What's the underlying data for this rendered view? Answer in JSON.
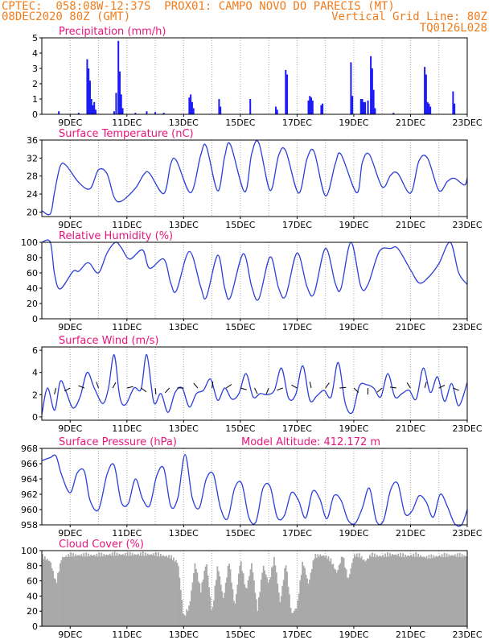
{
  "header": {
    "line1": "CPTEC:  058:08W-12:37S  PROX01: CAMPO NOVO DO PARECIS (MT)",
    "line2": "08DEC2020 80Z (GMT)",
    "line3": "Vertical Grid Line: 80Z",
    "line4": "TQ0126L028"
  },
  "colors": {
    "header": "#f07c1c",
    "title": "#e8157e",
    "precip": "#1b1bf5",
    "line": "#2a3fd9",
    "cloud": "#a9a9a9"
  },
  "chart_data": [
    {
      "id": "precip",
      "type": "bar",
      "title": "Precipitation  (mm/h)",
      "x_ticks": [
        "9DEC",
        "11DEC",
        "13DEC",
        "15DEC",
        "17DEC",
        "19DEC",
        "21DEC",
        "23DEC"
      ],
      "xlim": [
        8.0,
        23.0
      ],
      "ylim": [
        0,
        5
      ],
      "y_ticks": [
        0,
        1,
        2,
        3,
        4,
        5
      ],
      "bars": [
        {
          "x": 8.6,
          "v": 0.2
        },
        {
          "x": 9.3,
          "v": 0.1
        },
        {
          "x": 9.6,
          "v": 3.6
        },
        {
          "x": 9.65,
          "v": 3.0
        },
        {
          "x": 9.7,
          "v": 2.2
        },
        {
          "x": 9.75,
          "v": 1.0
        },
        {
          "x": 9.8,
          "v": 0.6
        },
        {
          "x": 9.85,
          "v": 0.8
        },
        {
          "x": 9.9,
          "v": 0.3
        },
        {
          "x": 10.55,
          "v": 0.2
        },
        {
          "x": 10.62,
          "v": 1.4
        },
        {
          "x": 10.7,
          "v": 4.8
        },
        {
          "x": 10.75,
          "v": 2.8
        },
        {
          "x": 10.8,
          "v": 1.3
        },
        {
          "x": 10.85,
          "v": 0.4
        },
        {
          "x": 11.3,
          "v": 0.1
        },
        {
          "x": 11.7,
          "v": 0.2
        },
        {
          "x": 12.0,
          "v": 0.15
        },
        {
          "x": 12.3,
          "v": 0.1
        },
        {
          "x": 13.2,
          "v": 1.1
        },
        {
          "x": 13.25,
          "v": 1.3
        },
        {
          "x": 13.3,
          "v": 0.8
        },
        {
          "x": 13.35,
          "v": 0.4
        },
        {
          "x": 14.25,
          "v": 1.0
        },
        {
          "x": 14.3,
          "v": 0.5
        },
        {
          "x": 15.35,
          "v": 1.0
        },
        {
          "x": 16.25,
          "v": 0.5
        },
        {
          "x": 16.3,
          "v": 0.3
        },
        {
          "x": 16.6,
          "v": 2.9
        },
        {
          "x": 16.65,
          "v": 2.6
        },
        {
          "x": 17.4,
          "v": 0.9
        },
        {
          "x": 17.45,
          "v": 1.2
        },
        {
          "x": 17.5,
          "v": 1.1
        },
        {
          "x": 17.55,
          "v": 0.9
        },
        {
          "x": 17.85,
          "v": 0.6
        },
        {
          "x": 17.9,
          "v": 0.7
        },
        {
          "x": 18.9,
          "v": 3.4
        },
        {
          "x": 18.95,
          "v": 1.2
        },
        {
          "x": 19.25,
          "v": 1.0
        },
        {
          "x": 19.3,
          "v": 1.0
        },
        {
          "x": 19.35,
          "v": 0.8
        },
        {
          "x": 19.4,
          "v": 0.8
        },
        {
          "x": 19.5,
          "v": 0.9
        },
        {
          "x": 19.6,
          "v": 3.8
        },
        {
          "x": 19.65,
          "v": 3.0
        },
        {
          "x": 19.7,
          "v": 1.6
        },
        {
          "x": 19.75,
          "v": 0.4
        },
        {
          "x": 20.4,
          "v": 0.1
        },
        {
          "x": 21.5,
          "v": 3.1
        },
        {
          "x": 21.55,
          "v": 2.6
        },
        {
          "x": 21.6,
          "v": 0.8
        },
        {
          "x": 21.65,
          "v": 0.7
        },
        {
          "x": 21.7,
          "v": 0.5
        },
        {
          "x": 22.5,
          "v": 1.5
        },
        {
          "x": 22.55,
          "v": 0.7
        }
      ]
    },
    {
      "id": "temp",
      "type": "line",
      "title": "Surface Temperature (nC)",
      "x_ticks": [
        "9DEC",
        "11DEC",
        "13DEC",
        "15DEC",
        "17DEC",
        "19DEC",
        "21DEC",
        "23DEC"
      ],
      "xlim": [
        8.0,
        23.0
      ],
      "ylim": [
        19,
        36
      ],
      "y_ticks": [
        20,
        24,
        28,
        32,
        36
      ],
      "x": [
        8.0,
        8.3,
        8.45,
        8.65,
        8.85,
        9.3,
        9.7,
        10.0,
        10.3,
        10.55,
        10.8,
        11.3,
        11.6,
        11.8,
        12.3,
        12.55,
        12.75,
        13.25,
        13.6,
        13.8,
        14.2,
        14.45,
        14.65,
        15.15,
        15.4,
        15.65,
        16.05,
        16.35,
        16.6,
        17.05,
        17.35,
        17.6,
        18.0,
        18.35,
        18.55,
        19.1,
        19.3,
        19.55,
        20.0,
        20.3,
        20.55,
        21.0,
        21.3,
        21.6,
        22.0,
        22.3,
        22.55,
        22.9,
        23.0
      ],
      "y": [
        20.3,
        19.6,
        24.5,
        30.2,
        30.4,
        26.6,
        25.2,
        29.4,
        28.5,
        23.3,
        22.4,
        25.3,
        28.4,
        28.6,
        24.1,
        30.8,
        31.4,
        24.3,
        32.6,
        34.6,
        24.7,
        32.4,
        35.0,
        24.5,
        33.0,
        35.4,
        24.8,
        32.6,
        33.6,
        24.2,
        31.8,
        33.4,
        23.6,
        30.8,
        32.8,
        24.3,
        31.0,
        32.8,
        25.6,
        28.2,
        28.6,
        24.2,
        31.4,
        32.0,
        24.8,
        26.8,
        27.5,
        26.0,
        27.6
      ]
    },
    {
      "id": "rh",
      "type": "line",
      "title": "Relative Humidity (%)",
      "x_ticks": [
        "9DEC",
        "11DEC",
        "13DEC",
        "15DEC",
        "17DEC",
        "19DEC",
        "21DEC",
        "23DEC"
      ],
      "xlim": [
        8.0,
        23.0
      ],
      "ylim": [
        0,
        100
      ],
      "y_ticks": [
        0,
        20,
        40,
        60,
        80,
        100
      ],
      "x": [
        8.0,
        8.3,
        8.45,
        8.65,
        9.1,
        9.3,
        9.55,
        9.7,
        10.0,
        10.3,
        10.6,
        10.8,
        11.1,
        11.55,
        11.8,
        12.3,
        12.55,
        12.75,
        13.2,
        13.6,
        13.8,
        14.2,
        14.45,
        14.65,
        15.1,
        15.4,
        15.65,
        16.05,
        16.35,
        16.6,
        17.0,
        17.35,
        17.6,
        18.0,
        18.35,
        18.55,
        18.9,
        19.25,
        19.5,
        19.9,
        20.3,
        20.55,
        21.0,
        21.3,
        21.6,
        22.0,
        22.4,
        22.7,
        23.0
      ],
      "y": [
        100,
        100,
        58,
        39,
        62,
        62,
        72,
        72,
        60,
        86,
        100,
        93,
        78,
        90,
        66,
        78,
        46,
        37,
        88,
        42,
        28,
        83,
        40,
        28,
        85,
        42,
        26,
        81,
        40,
        30,
        86,
        42,
        33,
        92,
        46,
        40,
        100,
        42,
        45,
        88,
        92,
        92,
        64,
        47,
        53,
        72,
        100,
        60,
        45
      ]
    },
    {
      "id": "wind",
      "type": "line",
      "title": "Surface Wind (m/s)",
      "x_ticks": [
        "9DEC",
        "11DEC",
        "13DEC",
        "15DEC",
        "17DEC",
        "19DEC",
        "21DEC",
        "23DEC"
      ],
      "xlim": [
        8.0,
        23.0
      ],
      "ylim": [
        -0.3,
        6.3
      ],
      "y_ticks": [
        0,
        2,
        4,
        6
      ],
      "x": [
        8.0,
        8.2,
        8.45,
        8.65,
        8.85,
        9.1,
        9.35,
        9.6,
        9.85,
        10.15,
        10.35,
        10.55,
        10.75,
        10.95,
        11.25,
        11.5,
        11.7,
        11.95,
        12.2,
        12.45,
        12.7,
        12.95,
        13.2,
        13.45,
        13.7,
        13.95,
        14.2,
        14.45,
        14.7,
        14.95,
        15.2,
        15.45,
        15.7,
        15.95,
        16.2,
        16.45,
        16.7,
        16.95,
        17.2,
        17.45,
        17.7,
        17.95,
        18.2,
        18.45,
        18.7,
        18.95,
        19.2,
        19.45,
        19.7,
        19.95,
        20.2,
        20.45,
        20.7,
        20.95,
        21.2,
        21.45,
        21.7,
        21.95,
        22.2,
        22.45,
        22.7,
        23.0
      ],
      "y": [
        0.2,
        2.6,
        0.6,
        3.2,
        2.3,
        0.8,
        1.8,
        4.0,
        2.6,
        1.2,
        2.6,
        5.6,
        1.8,
        1.1,
        2.6,
        2.5,
        5.6,
        1.3,
        2.1,
        0.4,
        2.2,
        2.6,
        0.9,
        2.1,
        2.4,
        3.4,
        1.5,
        2.6,
        1.6,
        2.1,
        3.9,
        1.8,
        2.1,
        2.0,
        2.4,
        4.4,
        1.7,
        2.0,
        4.6,
        1.5,
        1.9,
        2.4,
        1.8,
        4.9,
        1.2,
        0.4,
        2.8,
        2.9,
        2.6,
        1.8,
        3.9,
        1.8,
        2.1,
        2.4,
        1.6,
        4.4,
        2.2,
        3.6,
        1.4,
        3.0,
        1.0,
        3.1
      ]
    },
    {
      "id": "press",
      "type": "line",
      "title": "Surface Pressure (hPa)",
      "annotation": "Model Altitude: 412.172 m",
      "x_ticks": [
        "9DEC",
        "11DEC",
        "13DEC",
        "15DEC",
        "17DEC",
        "19DEC",
        "21DEC",
        "23DEC"
      ],
      "xlim": [
        8.0,
        23.0
      ],
      "ylim": [
        958,
        968
      ],
      "y_ticks": [
        958,
        960,
        962,
        964,
        966,
        968
      ],
      "x": [
        8.0,
        8.3,
        8.5,
        8.7,
        9.0,
        9.25,
        9.5,
        9.7,
        10.0,
        10.3,
        10.55,
        10.8,
        11.05,
        11.3,
        11.55,
        11.8,
        12.05,
        12.3,
        12.55,
        12.8,
        13.05,
        13.3,
        13.55,
        13.8,
        14.05,
        14.3,
        14.55,
        14.8,
        15.05,
        15.3,
        15.55,
        15.8,
        16.05,
        16.3,
        16.55,
        16.8,
        17.05,
        17.3,
        17.55,
        17.8,
        18.05,
        18.3,
        18.55,
        18.8,
        19.05,
        19.3,
        19.55,
        19.8,
        20.05,
        20.3,
        20.55,
        20.8,
        21.05,
        21.3,
        21.55,
        21.8,
        22.05,
        22.3,
        22.55,
        22.8,
        23.0
      ],
      "y": [
        966.4,
        966.8,
        967.0,
        964.5,
        962.2,
        964.8,
        965.0,
        961.2,
        960.0,
        964.6,
        965.8,
        961.0,
        960.8,
        964.0,
        961.4,
        960.5,
        964.4,
        965.4,
        960.4,
        961.6,
        967.2,
        961.6,
        960.2,
        964.0,
        964.6,
        960.2,
        958.8,
        962.8,
        963.4,
        959.0,
        958.4,
        962.8,
        963.0,
        959.0,
        959.2,
        962.2,
        961.2,
        958.9,
        962.4,
        961.4,
        958.8,
        961.8,
        961.2,
        958.6,
        958.2,
        960.2,
        962.8,
        958.5,
        958.6,
        962.6,
        963.4,
        959.5,
        959.8,
        961.8,
        961.0,
        959.0,
        962.0,
        960.4,
        958.2,
        958.0,
        960.0
      ]
    },
    {
      "id": "cloud",
      "type": "bar",
      "title": "Cloud Cover (%)",
      "x_ticks": [
        "9DEC",
        "11DEC",
        "13DEC",
        "15DEC",
        "17DEC",
        "19DEC",
        "21DEC",
        "23DEC"
      ],
      "xlim": [
        8.0,
        23.0
      ],
      "ylim": [
        0,
        100
      ],
      "y_ticks": [
        0,
        20,
        40,
        60,
        80,
        100
      ],
      "profile_x": [
        8.0,
        8.3,
        8.5,
        8.7,
        9.0,
        9.5,
        10.0,
        10.5,
        11.0,
        11.5,
        12.0,
        12.5,
        12.8,
        13.0,
        13.2,
        13.4,
        13.6,
        13.8,
        14.0,
        14.2,
        14.4,
        14.6,
        14.8,
        15.0,
        15.2,
        15.4,
        15.6,
        15.8,
        16.0,
        16.2,
        16.4,
        16.6,
        16.8,
        17.0,
        17.2,
        17.4,
        17.6,
        17.8,
        18.0,
        18.2,
        18.4,
        18.6,
        18.8,
        19.0,
        19.2,
        19.4,
        19.6,
        19.8,
        20.0,
        20.4,
        20.8,
        21.2,
        21.6,
        22.0,
        22.5,
        23.0
      ],
      "profile_y": [
        96,
        90,
        60,
        95,
        98,
        98,
        98,
        99,
        99,
        99,
        99,
        96,
        88,
        15,
        30,
        88,
        50,
        90,
        20,
        85,
        40,
        90,
        30,
        92,
        50,
        88,
        25,
        85,
        60,
        95,
        35,
        88,
        20,
        30,
        90,
        60,
        95,
        98,
        97,
        90,
        75,
        98,
        65,
        98,
        97,
        90,
        98,
        97,
        97,
        99,
        97,
        98,
        95,
        97,
        98,
        97
      ]
    }
  ]
}
